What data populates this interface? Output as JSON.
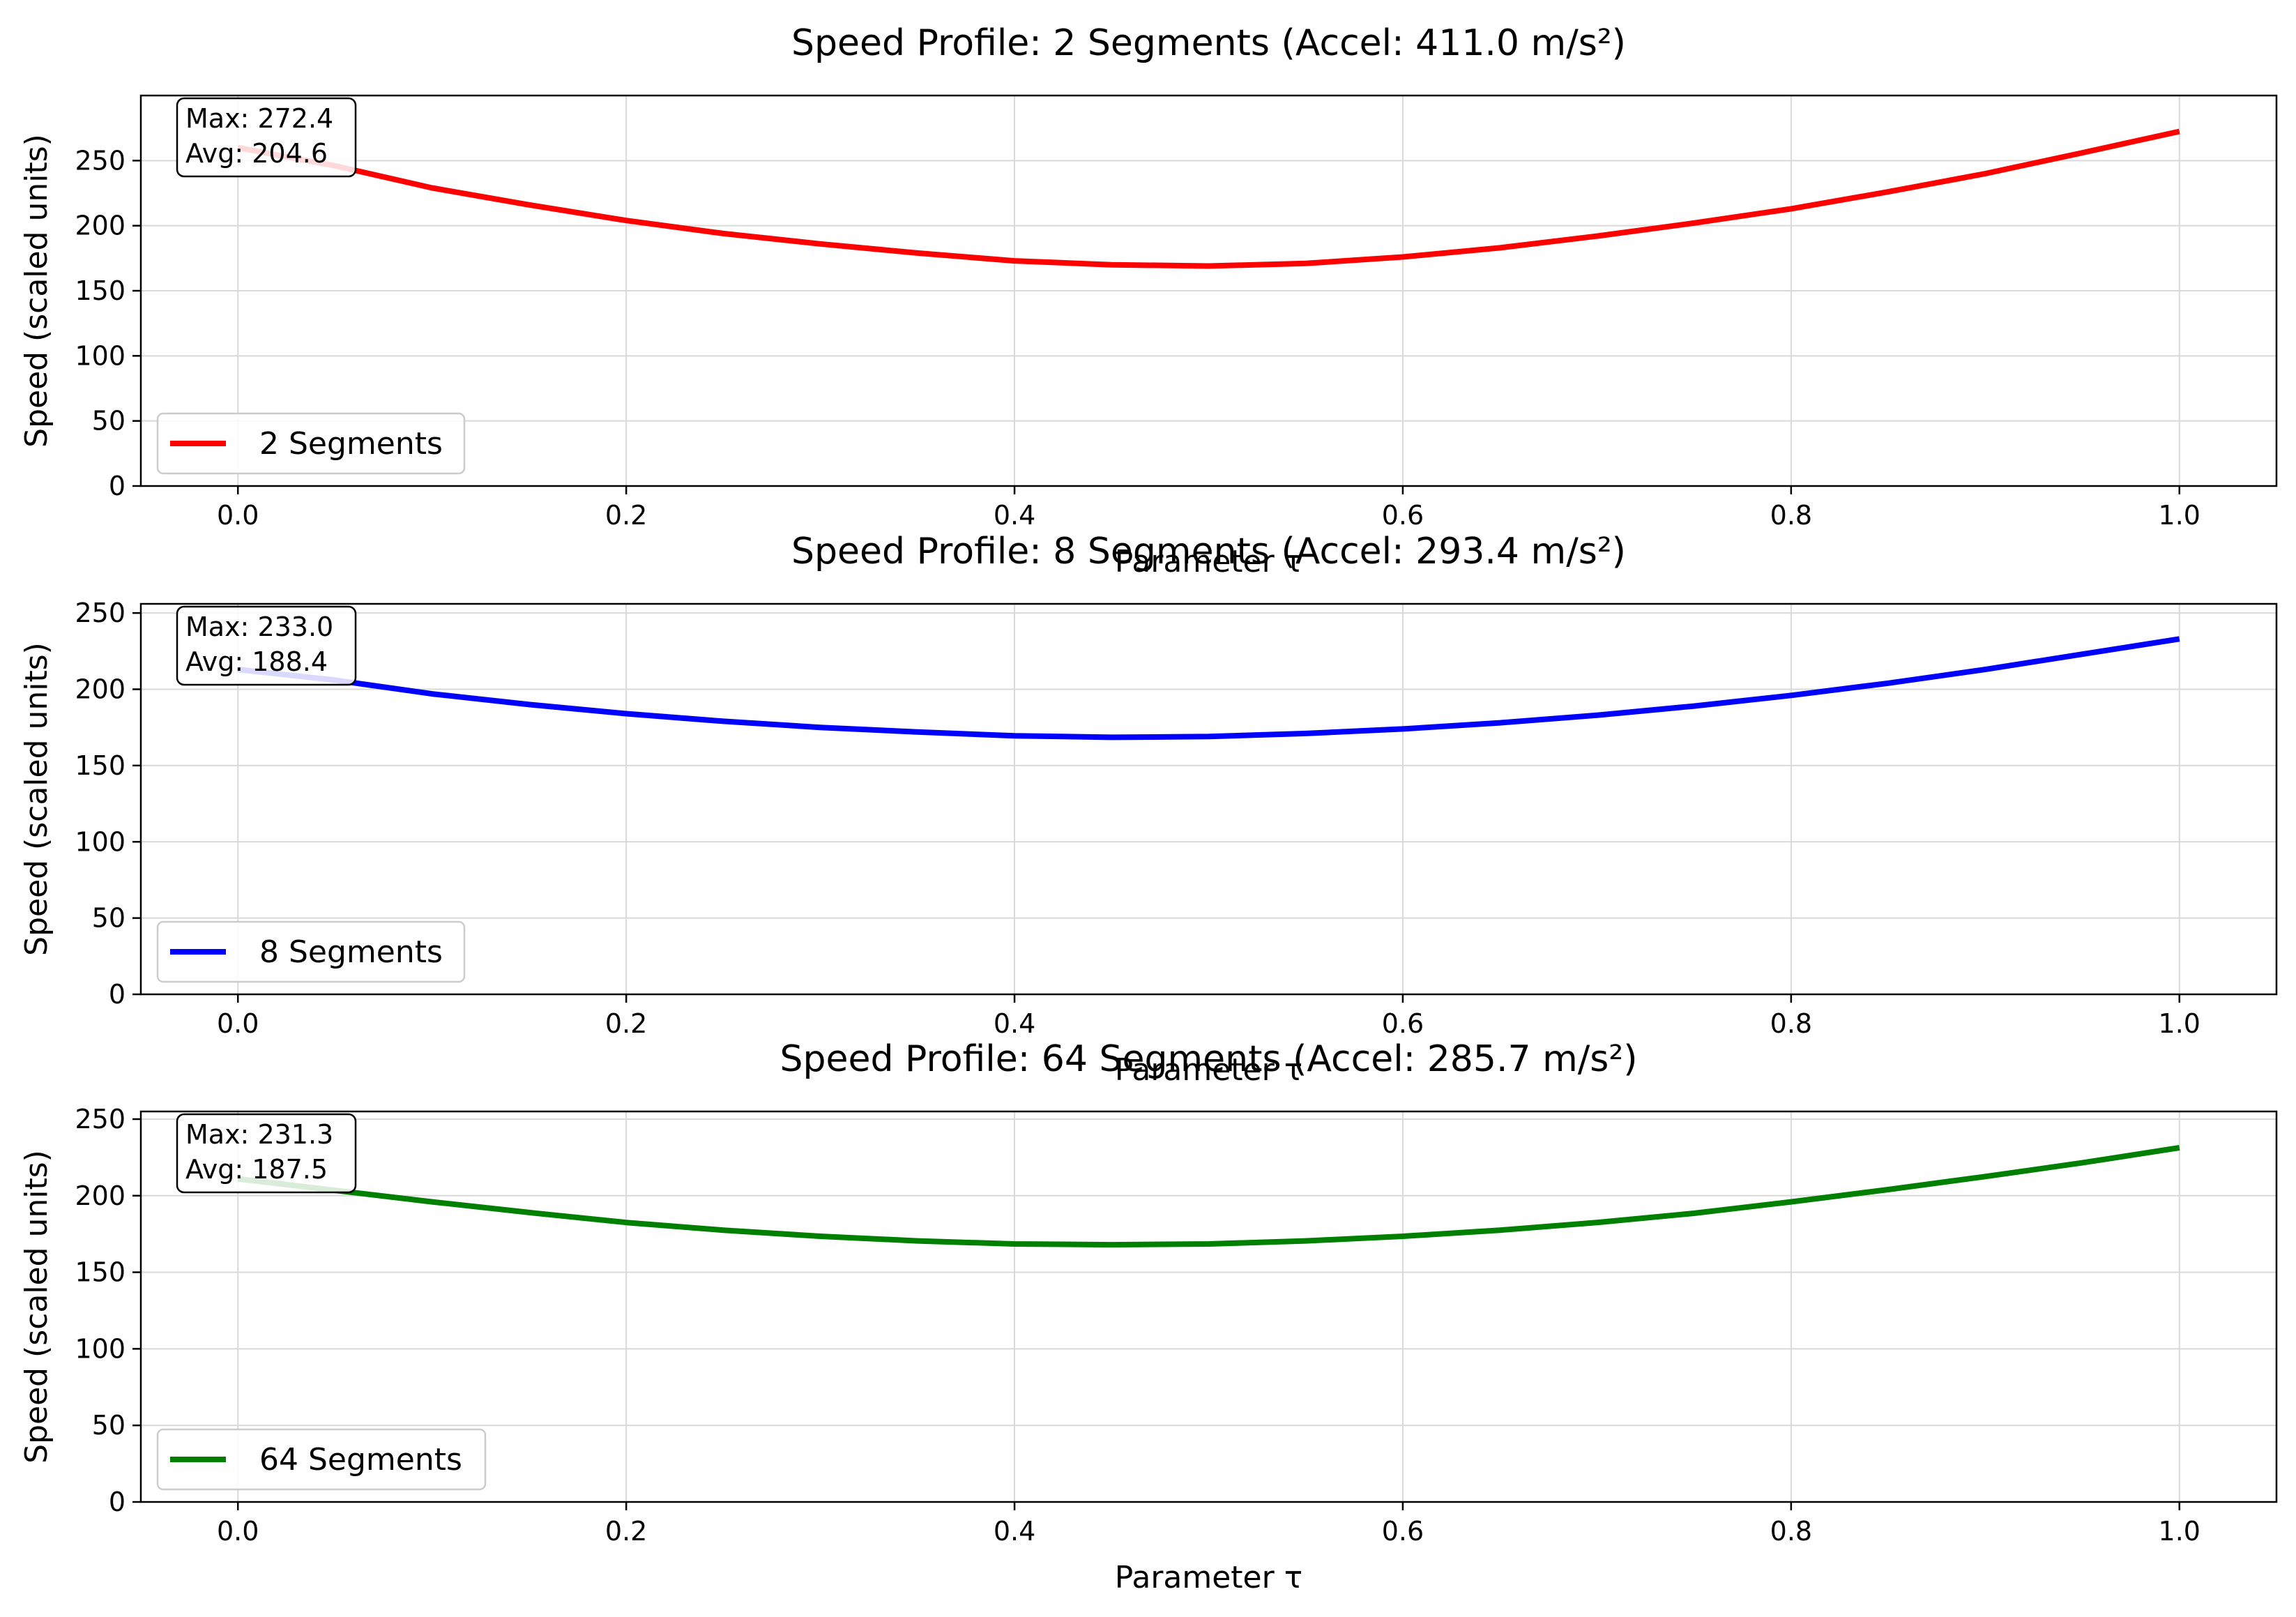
{
  "chart_data": [
    {
      "type": "line",
      "title": "Speed Profile: 2 Segments (Accel: 411.0 m/s²)",
      "xlabel": "Parameter τ",
      "ylabel": "Speed (scaled units)",
      "xlim": [
        -0.05,
        1.05
      ],
      "ylim": [
        0,
        300
      ],
      "xticks": [
        "0.0",
        "0.2",
        "0.4",
        "0.6",
        "0.8",
        "1.0"
      ],
      "yticks": [
        "0",
        "50",
        "100",
        "150",
        "200",
        "250"
      ],
      "grid": true,
      "legend_position": "lower-left",
      "annotation": [
        "Max: 272.4",
        "Avg: 204.6"
      ],
      "series": [
        {
          "name": "2 Segments",
          "color": "#ff0000",
          "x": [
            0.0,
            0.05,
            0.1,
            0.15,
            0.2,
            0.25,
            0.3,
            0.35,
            0.4,
            0.45,
            0.5,
            0.55,
            0.6,
            0.65,
            0.7,
            0.75,
            0.8,
            0.85,
            0.9,
            0.95,
            1.0
          ],
          "values": [
            260,
            246,
            229,
            216,
            204,
            194,
            186,
            179,
            173,
            170,
            169,
            171,
            176,
            183,
            192,
            202,
            213,
            226,
            240,
            256,
            272.4
          ]
        }
      ]
    },
    {
      "type": "line",
      "title": "Speed Profile: 8 Segments (Accel: 293.4 m/s²)",
      "xlabel": "Parameter τ",
      "ylabel": "Speed (scaled units)",
      "xlim": [
        -0.05,
        1.05
      ],
      "ylim": [
        0,
        256
      ],
      "xticks": [
        "0.0",
        "0.2",
        "0.4",
        "0.6",
        "0.8",
        "1.0"
      ],
      "yticks": [
        "0",
        "50",
        "100",
        "150",
        "200",
        "250"
      ],
      "grid": true,
      "legend_position": "lower-left",
      "annotation": [
        "Max: 233.0",
        "Avg: 188.4"
      ],
      "series": [
        {
          "name": "8 Segments",
          "color": "#0000ff",
          "x": [
            0.0,
            0.05,
            0.1,
            0.15,
            0.2,
            0.25,
            0.3,
            0.35,
            0.4,
            0.45,
            0.5,
            0.55,
            0.6,
            0.65,
            0.7,
            0.75,
            0.8,
            0.85,
            0.9,
            0.95,
            1.0
          ],
          "values": [
            213,
            206,
            197,
            190,
            184,
            179,
            175,
            172,
            169.5,
            168.5,
            169,
            171,
            174,
            178,
            183,
            189,
            196,
            204,
            213,
            223,
            233.0
          ]
        }
      ]
    },
    {
      "type": "line",
      "title": "Speed Profile: 64 Segments (Accel: 285.7 m/s²)",
      "xlabel": "Parameter τ",
      "ylabel": "Speed (scaled units)",
      "xlim": [
        -0.05,
        1.05
      ],
      "ylim": [
        0,
        255
      ],
      "xticks": [
        "0.0",
        "0.2",
        "0.4",
        "0.6",
        "0.8",
        "1.0"
      ],
      "yticks": [
        "0",
        "50",
        "100",
        "150",
        "200",
        "250"
      ],
      "grid": true,
      "legend_position": "lower-left",
      "annotation": [
        "Max: 231.3",
        "Avg: 187.5"
      ],
      "series": [
        {
          "name": "64 Segments",
          "color": "#008000",
          "x": [
            0.0,
            0.05,
            0.1,
            0.15,
            0.2,
            0.25,
            0.3,
            0.35,
            0.4,
            0.45,
            0.5,
            0.55,
            0.6,
            0.65,
            0.7,
            0.75,
            0.8,
            0.85,
            0.9,
            0.95,
            1.0
          ],
          "values": [
            211,
            203.5,
            196,
            189,
            182.5,
            177.5,
            173.5,
            170.5,
            168.5,
            168,
            168.5,
            170.5,
            173.5,
            177.5,
            182.5,
            188.5,
            196,
            204,
            212.5,
            221.5,
            231.3
          ]
        }
      ]
    }
  ]
}
